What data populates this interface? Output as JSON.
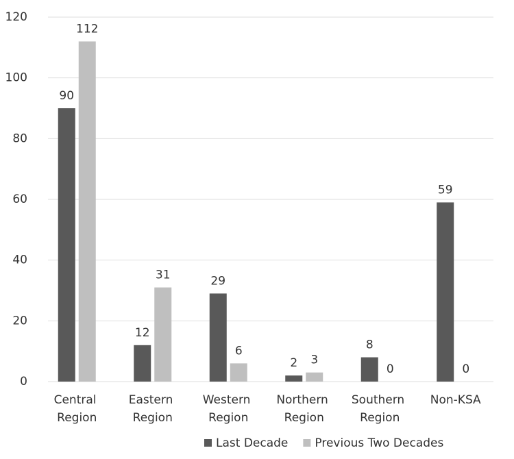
{
  "chart_data": {
    "type": "bar",
    "categories": [
      "Central Region",
      "Eastern Region",
      "Western Region",
      "Northern Region",
      "Southern Region",
      "Non-KSA"
    ],
    "series": [
      {
        "name": "Last Decade",
        "color": "#595959",
        "values": [
          90,
          12,
          29,
          2,
          8,
          59
        ]
      },
      {
        "name": "Previous Two Decades",
        "color": "#bfbfbf",
        "values": [
          112,
          31,
          6,
          3,
          0,
          0
        ]
      }
    ],
    "ylim": [
      0,
      120
    ],
    "yticks": [
      0,
      20,
      40,
      60,
      80,
      100,
      120
    ],
    "grid": true,
    "legend": "bottom"
  }
}
